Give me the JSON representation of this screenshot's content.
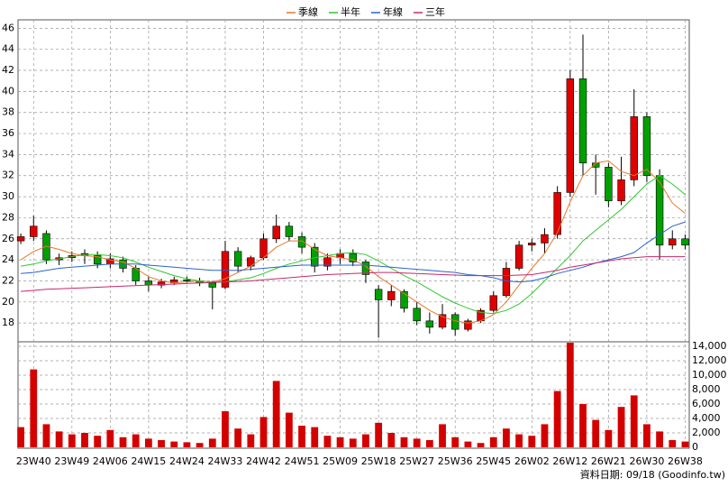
{
  "chart_data": {
    "type": "candlestick",
    "categories": [
      null,
      "23W40",
      null,
      null,
      "23W49",
      null,
      null,
      "24W06",
      null,
      null,
      "24W15",
      null,
      null,
      "24W24",
      null,
      null,
      "24W33",
      null,
      null,
      "24W42",
      null,
      null,
      "24W51",
      null,
      null,
      "25W09",
      null,
      null,
      "25W18",
      null,
      null,
      "25W27",
      null,
      null,
      "25W36",
      null,
      null,
      "25W45",
      null,
      null,
      "26W02",
      null,
      null,
      "26W12",
      null,
      null,
      "26W21",
      null,
      null,
      "26W30",
      null,
      null,
      "26W38"
    ],
    "open": [
      25.8,
      26.2,
      26.5,
      24.0,
      24.2,
      24.4,
      24.4,
      23.6,
      24.0,
      23.2,
      22.0,
      21.6,
      21.8,
      22.1,
      22.0,
      21.8,
      21.4,
      24.8,
      23.4,
      24.2,
      26.0,
      27.2,
      26.2,
      25.2,
      23.4,
      24.2,
      24.6,
      23.8,
      21.2,
      20.2,
      21.0,
      19.4,
      18.2,
      17.6,
      18.8,
      17.4,
      18.2,
      19.2,
      20.6,
      23.2,
      25.4,
      25.6,
      26.4,
      30.4,
      41.2,
      33.2,
      32.8,
      29.6,
      31.6,
      37.6,
      32.0,
      25.4,
      26.0
    ],
    "high": [
      26.5,
      28.2,
      26.8,
      24.6,
      24.8,
      25.0,
      24.8,
      24.6,
      24.3,
      23.5,
      22.4,
      22.2,
      22.4,
      22.4,
      22.3,
      22.0,
      25.8,
      25.2,
      24.4,
      26.5,
      28.3,
      27.6,
      26.6,
      25.6,
      24.6,
      25.0,
      25.0,
      24.0,
      21.6,
      21.6,
      21.2,
      20.0,
      19.0,
      19.8,
      19.0,
      18.4,
      19.4,
      21.0,
      23.8,
      25.8,
      26.0,
      27.0,
      31.0,
      42.0,
      45.4,
      34.0,
      33.2,
      33.8,
      40.2,
      38.0,
      32.6,
      26.8,
      26.4
    ],
    "low": [
      25.5,
      25.8,
      23.6,
      23.5,
      23.8,
      23.6,
      23.2,
      23.2,
      22.8,
      21.6,
      21.0,
      21.3,
      21.6,
      21.8,
      21.5,
      19.3,
      21.2,
      22.8,
      23.0,
      24.0,
      25.6,
      25.8,
      24.6,
      22.8,
      23.0,
      23.6,
      23.4,
      21.8,
      16.6,
      19.6,
      19.0,
      17.8,
      17.0,
      17.4,
      16.8,
      17.2,
      18.0,
      19.0,
      20.4,
      23.0,
      24.8,
      24.6,
      26.0,
      30.0,
      32.0,
      30.2,
      29.0,
      29.2,
      31.0,
      31.4,
      24.0,
      25.0,
      25.0
    ],
    "close": [
      26.2,
      27.2,
      24.0,
      24.2,
      24.4,
      24.6,
      23.6,
      24.1,
      23.2,
      22.0,
      21.6,
      21.9,
      22.1,
      22.0,
      21.8,
      21.4,
      24.8,
      23.4,
      24.2,
      26.0,
      27.2,
      26.2,
      25.2,
      23.4,
      24.2,
      24.6,
      23.8,
      22.6,
      20.2,
      21.0,
      19.4,
      18.2,
      17.6,
      18.8,
      17.4,
      18.2,
      19.2,
      20.6,
      23.2,
      25.4,
      25.6,
      26.4,
      30.4,
      41.2,
      33.2,
      32.8,
      29.6,
      31.6,
      37.6,
      32.0,
      25.4,
      26.0,
      25.4
    ],
    "volume": [
      2800,
      10800,
      3200,
      2200,
      1800,
      2000,
      1600,
      2400,
      1400,
      1800,
      1200,
      1000,
      800,
      700,
      600,
      1200,
      5000,
      2600,
      1800,
      4200,
      9200,
      4800,
      3000,
      2800,
      1600,
      1400,
      1200,
      1800,
      3400,
      2000,
      1400,
      1200,
      1000,
      3200,
      1400,
      800,
      600,
      1400,
      2600,
      1800,
      1600,
      3200,
      7800,
      14500,
      6000,
      3800,
      2400,
      5600,
      7200,
      3200,
      2200,
      1000,
      800
    ],
    "up_color": "#e00000",
    "down_color": "#00a000",
    "volume_color": "#d40000",
    "series": [
      {
        "name": "季線",
        "color": "#e8772e",
        "values": [
          24.0,
          24.8,
          25.3,
          25.0,
          24.6,
          24.4,
          24.3,
          24.0,
          23.8,
          23.2,
          22.4,
          22.0,
          21.8,
          21.9,
          22.0,
          21.9,
          22.2,
          22.8,
          23.4,
          24.2,
          25.2,
          25.8,
          25.8,
          25.0,
          24.4,
          24.2,
          24.0,
          23.4,
          22.4,
          21.6,
          20.8,
          20.0,
          19.2,
          18.6,
          18.2,
          18.0,
          18.2,
          18.8,
          20.0,
          21.6,
          23.2,
          24.6,
          26.6,
          29.5,
          32.0,
          33.2,
          33.4,
          32.4,
          32.0,
          32.6,
          31.4,
          29.4,
          28.4
        ]
      },
      {
        "name": "半年",
        "color": "#2ec82e",
        "values": [
          23.4,
          23.6,
          23.9,
          24.1,
          24.3,
          24.5,
          24.5,
          24.4,
          24.2,
          23.8,
          23.3,
          22.9,
          22.5,
          22.2,
          22.0,
          21.9,
          21.9,
          22.1,
          22.3,
          22.7,
          23.2,
          23.6,
          23.9,
          24.2,
          24.4,
          24.6,
          24.7,
          24.5,
          23.9,
          23.2,
          22.5,
          21.9,
          21.2,
          20.5,
          19.9,
          19.4,
          19.0,
          18.9,
          19.2,
          19.8,
          20.8,
          22.0,
          23.2,
          24.4,
          25.8,
          26.8,
          27.8,
          28.8,
          30.0,
          31.2,
          32.0,
          31.2,
          30.2
        ]
      },
      {
        "name": "年線",
        "color": "#2a62d0",
        "values": [
          22.7,
          22.8,
          23.0,
          23.2,
          23.3,
          23.4,
          23.5,
          23.6,
          23.6,
          23.6,
          23.5,
          23.4,
          23.3,
          23.2,
          23.1,
          23.0,
          23.0,
          23.0,
          23.1,
          23.2,
          23.3,
          23.4,
          23.5,
          23.5,
          23.5,
          23.5,
          23.5,
          23.5,
          23.4,
          23.3,
          23.2,
          23.1,
          23.0,
          22.9,
          22.8,
          22.6,
          22.5,
          22.3,
          22.0,
          21.9,
          22.0,
          22.3,
          22.7,
          23.0,
          23.3,
          23.7,
          24.0,
          24.3,
          24.7,
          25.6,
          26.4,
          27.2,
          27.6
        ]
      },
      {
        "name": "三年",
        "color": "#c8286e",
        "values": [
          21.0,
          21.1,
          21.2,
          21.25,
          21.3,
          21.35,
          21.4,
          21.45,
          21.5,
          21.55,
          21.6,
          21.65,
          21.7,
          21.75,
          21.8,
          21.85,
          21.9,
          21.95,
          22.0,
          22.1,
          22.2,
          22.3,
          22.4,
          22.5,
          22.6,
          22.65,
          22.7,
          22.75,
          22.8,
          22.8,
          22.75,
          22.7,
          22.65,
          22.6,
          22.55,
          22.5,
          22.5,
          22.5,
          22.5,
          22.55,
          22.6,
          22.8,
          23.0,
          23.3,
          23.5,
          23.7,
          23.9,
          24.1,
          24.2,
          24.3,
          24.3,
          24.3,
          24.3
        ]
      }
    ],
    "ylim": [
      16.3,
      46.8
    ],
    "yticks": [
      18,
      20,
      22,
      24,
      26,
      28,
      30,
      32,
      34,
      36,
      38,
      40,
      42,
      44,
      46
    ],
    "y2lim": [
      0,
      14750
    ],
    "y2ticks": [
      0,
      {
        "value": 2000,
        "label": "2,000"
      },
      {
        "value": 4000,
        "label": "4,000"
      },
      {
        "value": 6000,
        "label": "6,000"
      },
      {
        "value": 8000,
        "label": "8,000"
      },
      {
        "value": 10000,
        "label": "10,000"
      },
      {
        "value": 12000,
        "label": "12,000"
      },
      {
        "value": 14000,
        "label": "14,000"
      }
    ],
    "grid": true,
    "source": "資料日期: 09/18 (Goodinfo.tw)"
  }
}
